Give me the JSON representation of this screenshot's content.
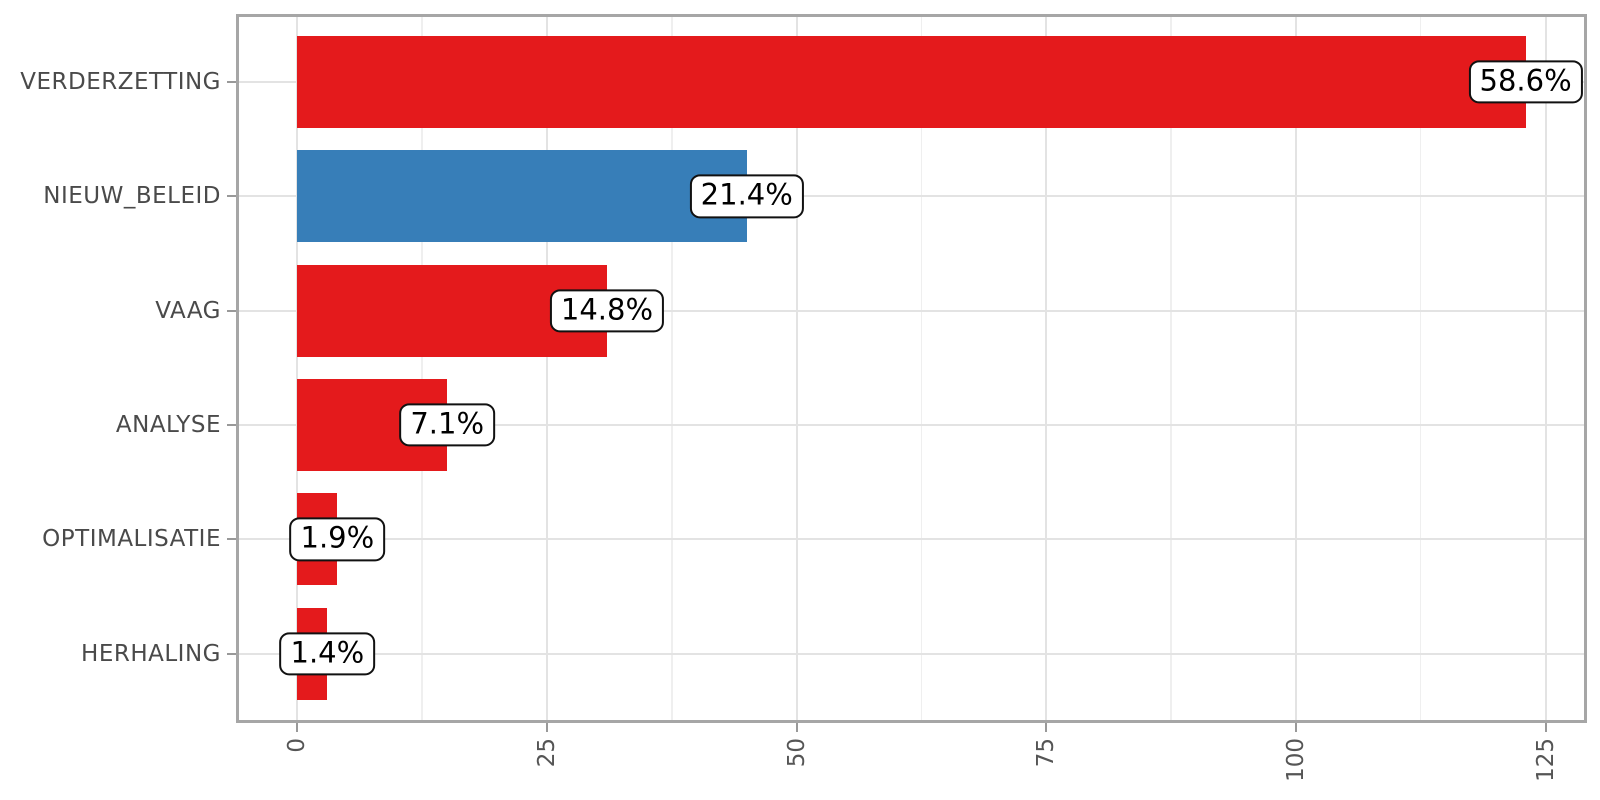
{
  "chart_data": {
    "type": "bar",
    "orientation": "horizontal",
    "title": "",
    "xlabel": "",
    "ylabel": "",
    "legend": "none",
    "grid": "vertical major+minor, horizontal major at category centers",
    "categories": [
      "VERDERZETTING",
      "NIEUW_BELEID",
      "VAAG",
      "ANALYSE",
      "OPTIMALISATIE",
      "HERHALING"
    ],
    "values": [
      123,
      45,
      31,
      15,
      4,
      3
    ],
    "percent_labels": [
      "58.6%",
      "21.4%",
      "14.8%",
      "7.1%",
      "1.9%",
      "1.4%"
    ],
    "bar_colors": [
      "#e41a1c",
      "#377eb8",
      "#e41a1c",
      "#e41a1c",
      "#e41a1c",
      "#e41a1c"
    ],
    "x_ticks": [
      0,
      25,
      50,
      75,
      100,
      125
    ],
    "x_minor_ticks": [
      12.5,
      37.5,
      62.5,
      87.5,
      112.5
    ],
    "xlim": [
      -6.15,
      129.15
    ],
    "bar_width_fraction": 0.8
  },
  "style": {
    "red": "#e41a1c",
    "blue": "#377eb8",
    "panel_border": "#a6a6a6",
    "grid_major": "#e3e3e3",
    "grid_minor": "#efefef",
    "axis_text": "#4a4a4a",
    "badge_border": "#111111",
    "badge_bg": "#ffffff"
  }
}
